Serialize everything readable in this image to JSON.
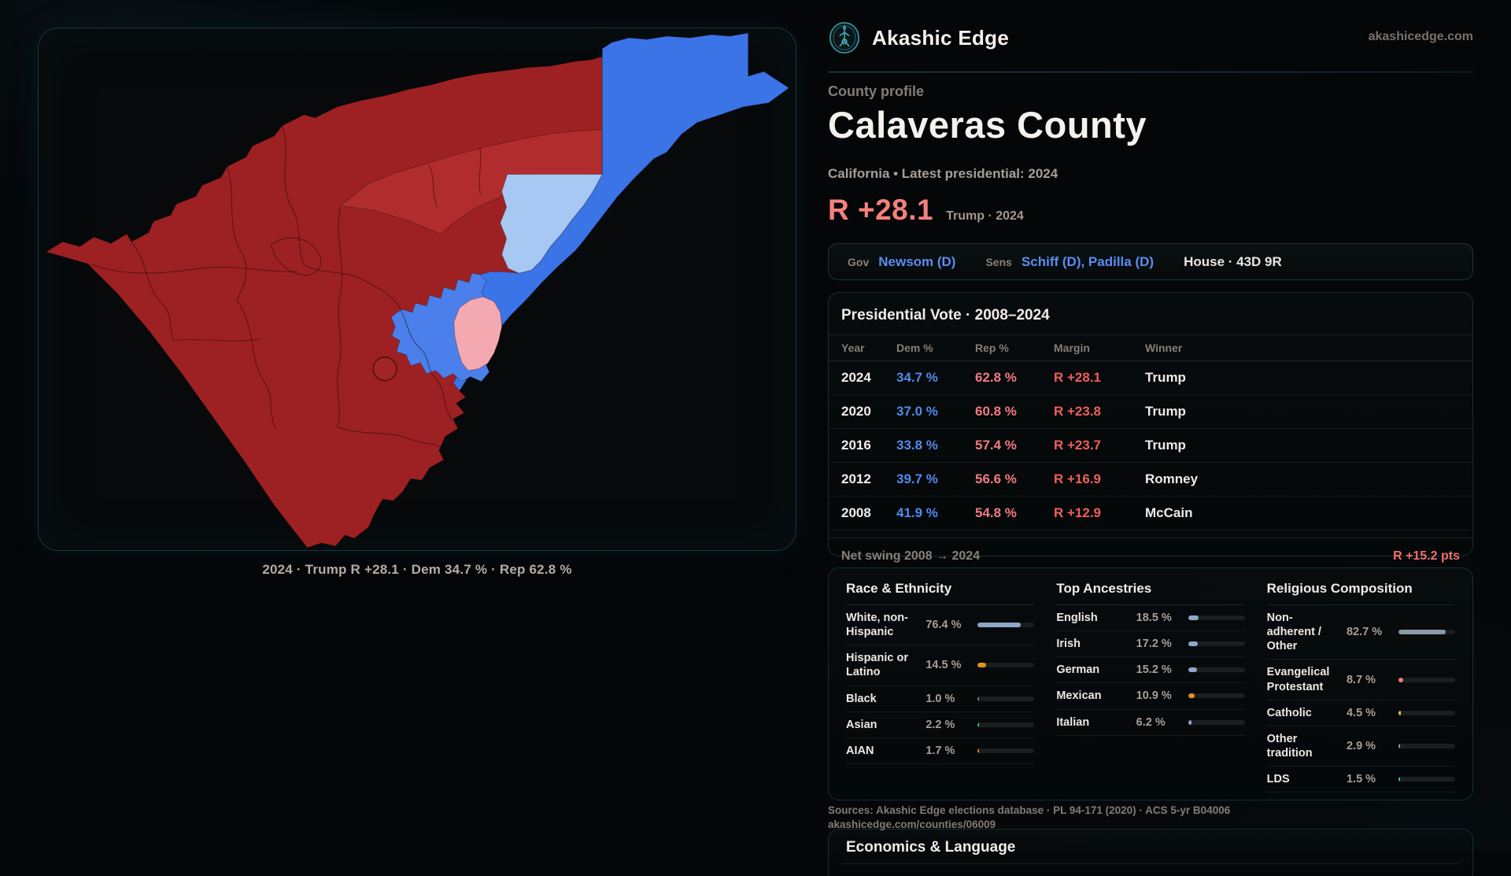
{
  "brand": {
    "name": "Akashic Edge",
    "domain": "akashicedge.com"
  },
  "page": {
    "eyebrow": "County profile",
    "title": "Calaveras County",
    "subtitle": "California • Latest presidential: 2024",
    "headline_margin": "R +28.1",
    "headline_context": "Trump · 2024"
  },
  "officials": {
    "gov_label": "Gov",
    "gov_value": "Newsom (D)",
    "sens_label": "Sens",
    "sens_value": "Schiff (D), Padilla (D)",
    "house_text": "House · 43D 9R"
  },
  "map": {
    "caption": "2024 · Trump R +28.1 · Dem 34.7 % · Rep 62.8 %",
    "colors": {
      "strong_rep": "#9d2123",
      "lean_rep_bright": "#b12d2d",
      "strong_dem": "#3a74e6",
      "dem_blob": "#4b80ec",
      "lean_dem_light": "#a7c8f2",
      "lean_rep_pink": "#f4a9b1",
      "small_precinct": "#a22525"
    }
  },
  "presidential": {
    "title": "Presidential Vote · 2008–2024",
    "columns": [
      "Year",
      "Dem %",
      "Rep %",
      "Margin",
      "Winner"
    ],
    "rows": [
      {
        "year": "2024",
        "dem": "34.7 %",
        "rep": "62.8 %",
        "margin": "R +28.1",
        "winner": "Trump"
      },
      {
        "year": "2020",
        "dem": "37.0 %",
        "rep": "60.8 %",
        "margin": "R +23.8",
        "winner": "Trump"
      },
      {
        "year": "2016",
        "dem": "33.8 %",
        "rep": "57.4 %",
        "margin": "R +23.7",
        "winner": "Trump"
      },
      {
        "year": "2012",
        "dem": "39.7 %",
        "rep": "56.6 %",
        "margin": "R +16.9",
        "winner": "Romney"
      },
      {
        "year": "2008",
        "dem": "41.9 %",
        "rep": "54.8 %",
        "margin": "R +12.9",
        "winner": "McCain"
      }
    ],
    "net_swing_label": "Net swing 2008 → 2024",
    "net_swing_value": "R +15.2 pts"
  },
  "demographics": {
    "columns": [
      {
        "title": "Race & Ethnicity",
        "rows": [
          {
            "label": "White, non-Hispanic",
            "value": "76.4 %",
            "pct": 76.4,
            "color": "#8ea7c7"
          },
          {
            "label": "Hispanic or Latino",
            "value": "14.5 %",
            "pct": 14.5,
            "color": "#e0931f"
          },
          {
            "label": "Black",
            "value": "1.0 %",
            "pct": 1.0,
            "color": "#6e7780"
          },
          {
            "label": "Asian",
            "value": "2.2 %",
            "pct": 2.2,
            "color": "#2fbf83"
          },
          {
            "label": "AIAN",
            "value": "1.7 %",
            "pct": 1.7,
            "color": "#dd7f22"
          }
        ]
      },
      {
        "title": "Top Ancestries",
        "rows": [
          {
            "label": "English",
            "value": "18.5 %",
            "pct": 18.5,
            "color": "#8ea7c7"
          },
          {
            "label": "Irish",
            "value": "17.2 %",
            "pct": 17.2,
            "color": "#8ea7c7"
          },
          {
            "label": "German",
            "value": "15.2 %",
            "pct": 15.2,
            "color": "#8ea7c7"
          },
          {
            "label": "Mexican",
            "value": "10.9 %",
            "pct": 10.9,
            "color": "#e0931f"
          },
          {
            "label": "Italian",
            "value": "6.2 %",
            "pct": 6.2,
            "color": "#8ea7c7"
          }
        ]
      },
      {
        "title": "Religious Composition",
        "rows": [
          {
            "label": "Non-adherent / Other",
            "value": "82.7 %",
            "pct": 82.7,
            "color": "#8a97a8"
          },
          {
            "label": "Evangelical Protestant",
            "value": "8.7 %",
            "pct": 8.7,
            "color": "#ef7d7d"
          },
          {
            "label": "Catholic",
            "value": "4.5 %",
            "pct": 4.5,
            "color": "#e8c23a"
          },
          {
            "label": "Other tradition",
            "value": "2.9 %",
            "pct": 2.9,
            "color": "#9aa3ad"
          },
          {
            "label": "LDS",
            "value": "1.5 %",
            "pct": 1.5,
            "color": "#35c8c0"
          }
        ]
      }
    ]
  },
  "sources": {
    "line1": "Sources: Akashic Edge elections database · PL 94-171 (2020) · ACS 5-yr B04006",
    "line2": "akashicedge.com/counties/06009"
  },
  "economics": {
    "title": "Economics & Language"
  }
}
